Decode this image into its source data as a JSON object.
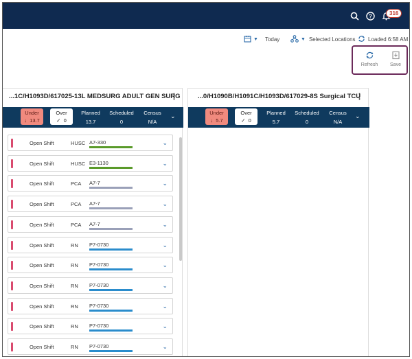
{
  "header": {
    "notification_count": "316",
    "icons": [
      "search-icon",
      "help-icon",
      "bell-icon"
    ]
  },
  "toolbar": {
    "date_label": "Today",
    "locations_label": "Selected Locations",
    "loaded_label": "Loaded 6:58 AM",
    "refresh_label": "Refresh",
    "save_label": "Save"
  },
  "panels": [
    {
      "title": "...1C/H1093D/617025-13L MEDSURG ADULT GEN SURG",
      "under_label": "Under",
      "under_value": "13.7",
      "over_label": "Over",
      "over_value": "0",
      "planned_label": "Planned",
      "planned_value": "13.7",
      "scheduled_label": "Scheduled",
      "scheduled_value": "0",
      "census_label": "Census",
      "census_value": "N/A"
    },
    {
      "title": "...0/H1090B/H1091C/H1093D/617029-8S Surgical TCU",
      "under_label": "Under",
      "under_value": "5.7",
      "over_label": "Over",
      "over_value": "0",
      "planned_label": "Planned",
      "planned_value": "5.7",
      "scheduled_label": "Scheduled",
      "scheduled_value": "0",
      "census_label": "Census",
      "census_value": "N/A"
    }
  ],
  "shifts": [
    {
      "type": "Open Shift",
      "role": "HUSC",
      "code": "A7-330",
      "line_color": "#5a9a2a"
    },
    {
      "type": "Open Shift",
      "role": "HUSC",
      "code": "E3-1130",
      "line_color": "#5a9a2a"
    },
    {
      "type": "Open Shift",
      "role": "PCA",
      "code": "A7-7",
      "line_color": "#9aa0b8"
    },
    {
      "type": "Open Shift",
      "role": "PCA",
      "code": "A7-7",
      "line_color": "#9aa0b8"
    },
    {
      "type": "Open Shift",
      "role": "PCA",
      "code": "A7-7",
      "line_color": "#9aa0b8"
    },
    {
      "type": "Open Shift",
      "role": "RN",
      "code": "P7-0730",
      "line_color": "#2a8ccc"
    },
    {
      "type": "Open Shift",
      "role": "RN",
      "code": "P7-0730",
      "line_color": "#2a8ccc"
    },
    {
      "type": "Open Shift",
      "role": "RN",
      "code": "P7-0730",
      "line_color": "#2a8ccc"
    },
    {
      "type": "Open Shift",
      "role": "RN",
      "code": "P7-0730",
      "line_color": "#2a8ccc"
    },
    {
      "type": "Open Shift",
      "role": "RN",
      "code": "P7-0730",
      "line_color": "#2a8ccc"
    },
    {
      "type": "Open Shift",
      "role": "RN",
      "code": "P7-0730",
      "line_color": "#2a8ccc"
    }
  ],
  "colors": {
    "navbar": "#0f2a50",
    "summary_bar": "#0f3a5e",
    "under_bg": "#f08a7e",
    "highlight_border": "#6b2a5a",
    "shift_marker": "#d94a6e"
  }
}
